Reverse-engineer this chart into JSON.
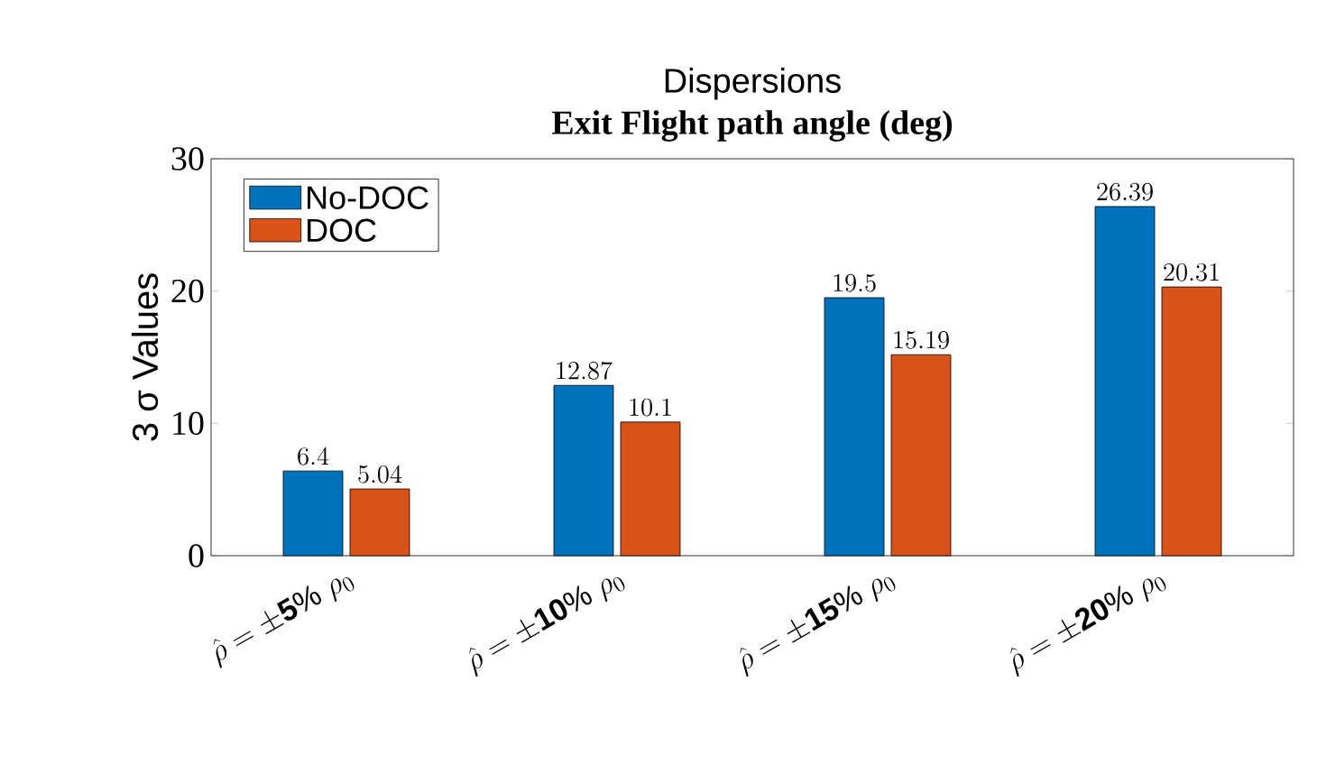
{
  "chart_data": {
    "type": "bar",
    "title": "Dispersions",
    "subtitle": "Exit Flight path angle (deg)",
    "ylabel": "3 σ Values",
    "categories": [
      "\\hat{\\rho}=\\pm\\mathbf{5}\\%\\ \\rho_0",
      "\\hat{\\rho}=\\pm\\mathbf{10}\\%\\ \\rho_0",
      "\\hat{\\rho}=\\pm\\mathbf{15}\\%\\ \\rho_0",
      "\\hat{\\rho}=\\pm\\mathbf{20}\\%\\ \\rho_0"
    ],
    "series": [
      {
        "name": "No-DOC",
        "color": "#0072bd",
        "values": [
          6.4,
          12.87,
          19.5,
          26.39
        ]
      },
      {
        "name": "DOC",
        "color": "#d95319",
        "values": [
          5.04,
          10.1,
          15.19,
          20.31
        ]
      }
    ],
    "ylim": [
      0,
      30
    ],
    "yticks": [
      0,
      10,
      20,
      30
    ],
    "data_labels": true,
    "legend": "top left",
    "grid": false
  }
}
